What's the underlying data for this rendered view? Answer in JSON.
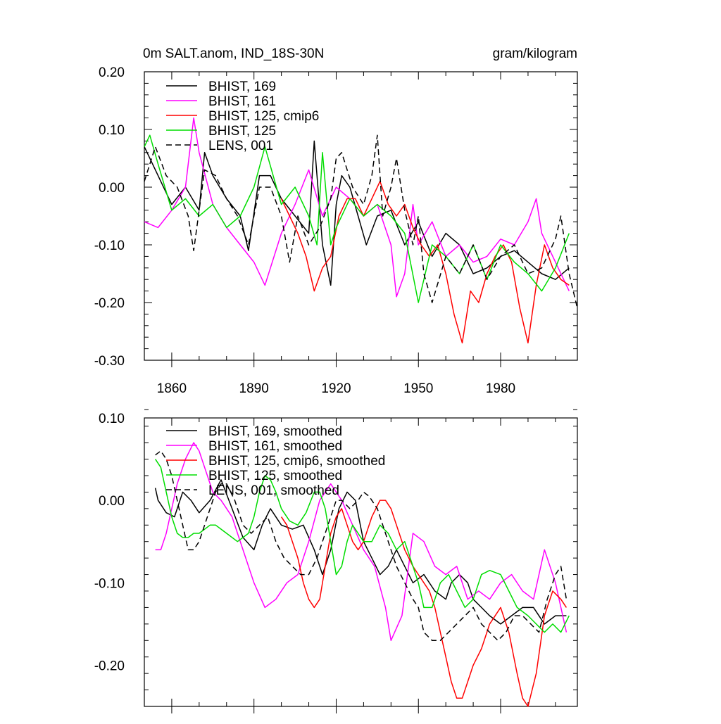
{
  "chart_data": [
    {
      "type": "line",
      "title": "0m SALT.anom, IND_18S-30N",
      "units": "gram/kilogram",
      "xlim": [
        1850,
        2008
      ],
      "ylim": [
        -0.3,
        0.2
      ],
      "yticks": [
        "0.20",
        "0.10",
        "0.00",
        "-0.10",
        "-0.20",
        "-0.30"
      ],
      "ytick_values": [
        0.2,
        0.1,
        0.0,
        -0.1,
        -0.2,
        -0.3
      ],
      "xticks": [
        "1860",
        "1890",
        "1920",
        "1950",
        "1980"
      ],
      "xtick_values": [
        1860,
        1890,
        1920,
        1950,
        1980
      ],
      "legend_position": "top-left",
      "series": [
        {
          "name": "BHIST, 169",
          "color": "#000000",
          "dash": false,
          "x": [
            1850,
            1855,
            1860,
            1865,
            1870,
            1872,
            1875,
            1880,
            1885,
            1888,
            1892,
            1896,
            1900,
            1905,
            1910,
            1912,
            1915,
            1918,
            1920,
            1922,
            1925,
            1928,
            1931,
            1935,
            1940,
            1945,
            1950,
            1955,
            1960,
            1965,
            1970,
            1975,
            1980,
            1985,
            1990,
            1995,
            2000,
            2005
          ],
          "y": [
            0.07,
            0.02,
            -0.03,
            0.0,
            -0.04,
            0.06,
            0.02,
            -0.02,
            -0.05,
            -0.11,
            0.02,
            0.02,
            -0.02,
            -0.05,
            -0.08,
            0.08,
            -0.1,
            -0.17,
            -0.03,
            0.02,
            0.0,
            -0.05,
            -0.1,
            -0.05,
            -0.04,
            -0.1,
            -0.06,
            -0.12,
            -0.08,
            -0.1,
            -0.15,
            -0.14,
            -0.12,
            -0.11,
            -0.13,
            -0.15,
            -0.16,
            -0.14
          ]
        },
        {
          "name": "BHIST, 161",
          "color": "#ff00ff",
          "dash": false,
          "x": [
            1850,
            1855,
            1860,
            1865,
            1868,
            1870,
            1875,
            1880,
            1885,
            1890,
            1894,
            1900,
            1905,
            1910,
            1915,
            1920,
            1925,
            1930,
            1935,
            1940,
            1942,
            1945,
            1948,
            1950,
            1955,
            1960,
            1965,
            1970,
            1975,
            1980,
            1985,
            1990,
            1993,
            1995,
            2000,
            2005
          ],
          "y": [
            -0.06,
            -0.07,
            -0.04,
            0.0,
            0.12,
            0.06,
            -0.03,
            -0.07,
            -0.1,
            -0.13,
            -0.17,
            -0.08,
            -0.03,
            0.03,
            -0.05,
            0.0,
            -0.02,
            -0.05,
            -0.03,
            -0.1,
            -0.19,
            -0.15,
            -0.03,
            -0.1,
            -0.06,
            -0.12,
            -0.1,
            -0.13,
            -0.12,
            -0.09,
            -0.1,
            -0.06,
            -0.02,
            -0.08,
            -0.13,
            -0.18
          ]
        },
        {
          "name": "BHIST, 125, cmip6",
          "color": "#ff0000",
          "dash": false,
          "x": [
            1900,
            1903,
            1906,
            1909,
            1912,
            1915,
            1918,
            1921,
            1924,
            1927,
            1930,
            1933,
            1936,
            1939,
            1942,
            1945,
            1948,
            1951,
            1954,
            1957,
            1960,
            1963,
            1966,
            1969,
            1972,
            1975,
            1978,
            1981,
            1984,
            1987,
            1990,
            1993,
            1996,
            1999,
            2002,
            2005
          ],
          "y": [
            -0.02,
            -0.05,
            -0.08,
            -0.12,
            -0.18,
            -0.14,
            -0.12,
            -0.05,
            -0.02,
            -0.02,
            -0.05,
            -0.02,
            0.01,
            -0.03,
            -0.05,
            -0.03,
            -0.07,
            -0.1,
            -0.12,
            -0.1,
            -0.15,
            -0.22,
            -0.27,
            -0.18,
            -0.2,
            -0.15,
            -0.12,
            -0.1,
            -0.13,
            -0.21,
            -0.27,
            -0.17,
            -0.1,
            -0.14,
            -0.16,
            -0.17
          ]
        },
        {
          "name": "BHIST, 125",
          "color": "#00dd00",
          "dash": false,
          "x": [
            1850,
            1852,
            1855,
            1860,
            1865,
            1870,
            1875,
            1880,
            1885,
            1890,
            1894,
            1900,
            1905,
            1910,
            1913,
            1915,
            1918,
            1920,
            1925,
            1930,
            1935,
            1940,
            1945,
            1950,
            1955,
            1960,
            1965,
            1970,
            1975,
            1980,
            1985,
            1990,
            1995,
            2000,
            2005
          ],
          "y": [
            0.07,
            0.09,
            0.04,
            -0.04,
            -0.02,
            -0.05,
            -0.03,
            -0.07,
            -0.05,
            0.0,
            0.07,
            -0.03,
            0.0,
            -0.05,
            -0.1,
            0.06,
            -0.1,
            -0.07,
            -0.02,
            -0.05,
            -0.03,
            -0.05,
            -0.08,
            -0.2,
            -0.1,
            -0.12,
            -0.15,
            -0.1,
            -0.16,
            -0.1,
            -0.13,
            -0.15,
            -0.18,
            -0.14,
            -0.08
          ]
        },
        {
          "name": "LENS, 001",
          "color": "#000000",
          "dash": true,
          "x": [
            1850,
            1854,
            1858,
            1862,
            1866,
            1868,
            1872,
            1876,
            1880,
            1884,
            1888,
            1892,
            1896,
            1900,
            1903,
            1906,
            1910,
            1914,
            1918,
            1920,
            1922,
            1926,
            1930,
            1933,
            1935,
            1937,
            1940,
            1942,
            1945,
            1948,
            1950,
            1952,
            1955,
            1960,
            1965,
            1970,
            1975,
            1980,
            1985,
            1990,
            1995,
            2000,
            2002,
            2005,
            2008
          ],
          "y": [
            0.01,
            0.07,
            0.02,
            0.0,
            -0.05,
            -0.11,
            0.03,
            0.02,
            -0.02,
            -0.05,
            -0.1,
            0.0,
            0.0,
            -0.05,
            -0.13,
            -0.05,
            -0.1,
            -0.07,
            -0.02,
            0.05,
            0.06,
            0.0,
            -0.03,
            0.02,
            0.09,
            -0.05,
            0.0,
            0.05,
            -0.04,
            -0.1,
            -0.05,
            -0.15,
            -0.2,
            -0.12,
            -0.15,
            -0.1,
            -0.16,
            -0.12,
            -0.1,
            -0.15,
            -0.14,
            -0.09,
            -0.05,
            -0.15,
            -0.21
          ]
        }
      ]
    },
    {
      "type": "line",
      "title": "",
      "xlim": [
        1850,
        2008
      ],
      "ylim": [
        -0.25,
        0.1
      ],
      "yticks": [
        "0.10",
        "0.00",
        "-0.10",
        "-0.20"
      ],
      "ytick_values": [
        0.1,
        0.0,
        -0.1,
        -0.2
      ],
      "xtick_values": [
        1860,
        1890,
        1920,
        1950,
        1980
      ],
      "legend_position": "top-left",
      "series": [
        {
          "name": "BHIST, 169, smoothed",
          "color": "#000000",
          "dash": false,
          "x": [
            1854,
            1855,
            1858,
            1861,
            1864,
            1867,
            1870,
            1874,
            1878,
            1882,
            1886,
            1890,
            1893,
            1896,
            1900,
            1904,
            1908,
            1912,
            1915,
            1918,
            1921,
            1924,
            1927,
            1930,
            1933,
            1936,
            1939,
            1942,
            1945,
            1948,
            1952,
            1956,
            1960,
            1962,
            1965,
            1968,
            1970,
            1973,
            1976,
            1980,
            1984,
            1988,
            1992,
            1996,
            2000,
            2004
          ],
          "y": [
            0.015,
            0.0,
            -0.015,
            -0.02,
            0.01,
            0.0,
            -0.015,
            0.0,
            0.025,
            -0.01,
            -0.045,
            -0.06,
            -0.03,
            -0.01,
            -0.03,
            -0.035,
            -0.03,
            -0.06,
            -0.09,
            -0.06,
            -0.01,
            0.01,
            0.0,
            -0.05,
            -0.07,
            -0.09,
            -0.08,
            -0.06,
            -0.08,
            -0.1,
            -0.09,
            -0.11,
            -0.12,
            -0.1,
            -0.09,
            -0.1,
            -0.12,
            -0.13,
            -0.14,
            -0.15,
            -0.14,
            -0.13,
            -0.13,
            -0.15,
            -0.14,
            -0.14
          ]
        },
        {
          "name": "BHIST, 161, smoothed",
          "color": "#ff00ff",
          "dash": false,
          "x": [
            1854,
            1856,
            1858,
            1860,
            1862,
            1865,
            1868,
            1870,
            1872,
            1875,
            1878,
            1882,
            1886,
            1890,
            1894,
            1898,
            1902,
            1906,
            1910,
            1914,
            1918,
            1922,
            1926,
            1930,
            1934,
            1938,
            1940,
            1944,
            1948,
            1952,
            1956,
            1960,
            1964,
            1968,
            1972,
            1976,
            1980,
            1984,
            1988,
            1992,
            1996,
            2000,
            2004
          ],
          "y": [
            -0.06,
            -0.06,
            -0.04,
            -0.01,
            0.02,
            0.05,
            0.07,
            0.06,
            0.04,
            0.01,
            0.0,
            -0.02,
            -0.06,
            -0.1,
            -0.13,
            -0.12,
            -0.1,
            -0.09,
            -0.05,
            0.0,
            0.02,
            0.0,
            -0.03,
            -0.06,
            -0.08,
            -0.13,
            -0.17,
            -0.14,
            -0.04,
            -0.05,
            -0.08,
            -0.09,
            -0.08,
            -0.12,
            -0.11,
            -0.12,
            -0.1,
            -0.09,
            -0.11,
            -0.12,
            -0.06,
            -0.1,
            -0.16
          ]
        },
        {
          "name": "BHIST, 125, cmip6, smoothed",
          "color": "#ff0000",
          "dash": false,
          "x": [
            1900,
            1902,
            1904,
            1906,
            1908,
            1910,
            1912,
            1914,
            1916,
            1918,
            1920,
            1922,
            1924,
            1926,
            1928,
            1930,
            1933,
            1936,
            1938,
            1940,
            1942,
            1945,
            1948,
            1950,
            1952,
            1954,
            1956,
            1958,
            1960,
            1962,
            1964,
            1966,
            1968,
            1970,
            1973,
            1976,
            1980,
            1983,
            1986,
            1988,
            1990,
            1993,
            1996,
            1999,
            2002,
            2004
          ],
          "y": [
            -0.02,
            -0.03,
            -0.05,
            -0.07,
            -0.1,
            -0.12,
            -0.13,
            -0.12,
            -0.08,
            -0.04,
            -0.02,
            -0.01,
            -0.03,
            -0.05,
            -0.06,
            -0.05,
            -0.02,
            0.0,
            0.0,
            -0.01,
            -0.03,
            -0.06,
            -0.08,
            -0.09,
            -0.1,
            -0.11,
            -0.13,
            -0.16,
            -0.19,
            -0.22,
            -0.24,
            -0.24,
            -0.22,
            -0.2,
            -0.18,
            -0.15,
            -0.13,
            -0.16,
            -0.21,
            -0.24,
            -0.25,
            -0.21,
            -0.14,
            -0.11,
            -0.12,
            -0.13
          ]
        },
        {
          "name": "BHIST, 125, smoothed",
          "color": "#00dd00",
          "dash": false,
          "x": [
            1854,
            1856,
            1858,
            1860,
            1862,
            1864,
            1866,
            1868,
            1870,
            1872,
            1874,
            1876,
            1878,
            1880,
            1882,
            1884,
            1886,
            1888,
            1890,
            1892,
            1894,
            1896,
            1898,
            1900,
            1903,
            1906,
            1909,
            1912,
            1914,
            1916,
            1918,
            1920,
            1922,
            1924,
            1926,
            1928,
            1930,
            1933,
            1936,
            1939,
            1942,
            1945,
            1948,
            1950,
            1952,
            1955,
            1958,
            1961,
            1964,
            1967,
            1970,
            1973,
            1976,
            1980,
            1983,
            1986,
            1990,
            1993,
            1996,
            1999,
            2002,
            2005
          ],
          "y": [
            0.05,
            0.04,
            0.01,
            -0.02,
            -0.04,
            -0.045,
            -0.045,
            -0.04,
            -0.04,
            -0.035,
            -0.03,
            -0.03,
            -0.035,
            -0.04,
            -0.045,
            -0.05,
            -0.045,
            -0.04,
            -0.02,
            0.01,
            0.03,
            0.025,
            0.01,
            -0.01,
            -0.025,
            -0.03,
            -0.015,
            0.01,
            0.01,
            -0.01,
            -0.05,
            -0.09,
            -0.08,
            -0.05,
            -0.03,
            -0.04,
            -0.05,
            -0.05,
            -0.03,
            -0.04,
            -0.06,
            -0.05,
            -0.08,
            -0.1,
            -0.13,
            -0.13,
            -0.1,
            -0.09,
            -0.11,
            -0.13,
            -0.12,
            -0.09,
            -0.085,
            -0.09,
            -0.11,
            -0.13,
            -0.14,
            -0.15,
            -0.16,
            -0.15,
            -0.16,
            -0.14
          ]
        },
        {
          "name": "LENS, 001, smoothed",
          "color": "#000000",
          "dash": true,
          "x": [
            1854,
            1856,
            1858,
            1860,
            1862,
            1864,
            1866,
            1868,
            1870,
            1872,
            1874,
            1876,
            1878,
            1880,
            1883,
            1886,
            1889,
            1892,
            1895,
            1898,
            1901,
            1904,
            1907,
            1910,
            1913,
            1916,
            1918,
            1920,
            1922,
            1925,
            1928,
            1930,
            1932,
            1935,
            1938,
            1940,
            1942,
            1945,
            1948,
            1950,
            1952,
            1955,
            1958,
            1961,
            1964,
            1967,
            1970,
            1973,
            1976,
            1979,
            1982,
            1985,
            1988,
            1991,
            1994,
            1997,
            2000,
            2002,
            2004
          ],
          "y": [
            0.055,
            0.06,
            0.05,
            0.03,
            0.0,
            -0.03,
            -0.06,
            -0.06,
            -0.05,
            -0.03,
            -0.01,
            0.01,
            0.02,
            0.02,
            0.0,
            -0.03,
            -0.04,
            -0.03,
            -0.02,
            -0.05,
            -0.07,
            -0.08,
            -0.09,
            -0.09,
            -0.07,
            -0.04,
            -0.02,
            0.0,
            0.0,
            -0.01,
            0.0,
            0.01,
            0.005,
            -0.01,
            -0.04,
            -0.06,
            -0.08,
            -0.1,
            -0.12,
            -0.13,
            -0.16,
            -0.17,
            -0.17,
            -0.16,
            -0.15,
            -0.14,
            -0.13,
            -0.15,
            -0.16,
            -0.17,
            -0.16,
            -0.14,
            -0.14,
            -0.15,
            -0.16,
            -0.12,
            -0.09,
            -0.08,
            -0.12
          ]
        }
      ]
    }
  ]
}
